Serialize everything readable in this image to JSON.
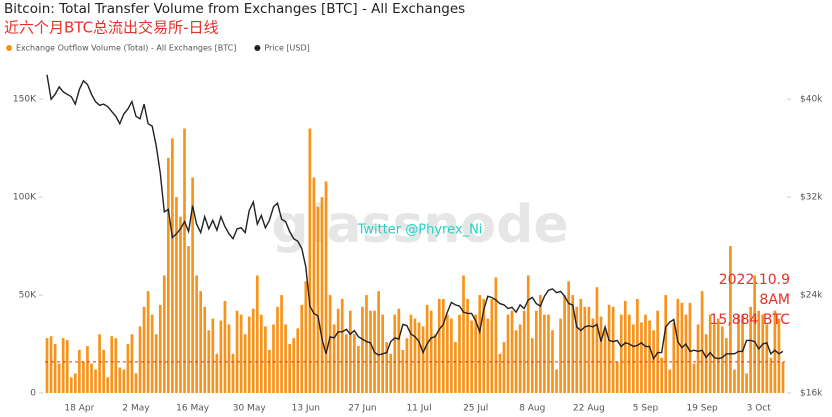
{
  "chart_data": {
    "type": "bar",
    "title": "Bitcoin: Total Transfer Volume from Exchanges [BTC] - All Exchanges",
    "subtitle": "近六个月BTC总流出交易所-日线",
    "watermark": "glassnode",
    "credit": "Twitter @Phyrex_Ni",
    "annotation": {
      "lines": [
        "2022.10.9",
        "8AM",
        "15,884 BTC"
      ],
      "value": 15884,
      "color": "#e8302a"
    },
    "categories": [
      null,
      null,
      null,
      null,
      null,
      null,
      null,
      null,
      "18 Apr",
      null,
      null,
      null,
      null,
      null,
      null,
      null,
      null,
      null,
      null,
      null,
      null,
      null,
      "2 May",
      null,
      null,
      null,
      null,
      null,
      null,
      null,
      null,
      null,
      null,
      null,
      null,
      null,
      "16 May",
      null,
      null,
      null,
      null,
      null,
      null,
      null,
      null,
      null,
      null,
      null,
      null,
      null,
      "30 May",
      null,
      null,
      null,
      null,
      null,
      null,
      null,
      null,
      null,
      null,
      null,
      null,
      null,
      "13 Jun",
      null,
      null,
      null,
      null,
      null,
      null,
      null,
      null,
      null,
      null,
      null,
      null,
      null,
      "27 Jun",
      null,
      null,
      null,
      null,
      null,
      null,
      null,
      null,
      null,
      null,
      null,
      null,
      null,
      "11 Jul",
      null,
      null,
      null,
      null,
      null,
      null,
      null,
      null,
      null,
      null,
      null,
      null,
      null,
      "25 Jul",
      null,
      null,
      null,
      null,
      null,
      null,
      null,
      null,
      null,
      null,
      null,
      null,
      null,
      "8 Aug",
      null,
      null,
      null,
      null,
      null,
      null,
      null,
      null,
      null,
      null,
      null,
      null,
      null,
      "22 Aug",
      null,
      null,
      null,
      null,
      null,
      null,
      null,
      null,
      null,
      null,
      null,
      null,
      null,
      "5 Sep",
      null,
      null,
      null,
      null,
      null,
      null,
      null,
      null,
      null,
      null,
      null,
      null,
      null,
      "19 Sep",
      null,
      null,
      null,
      null,
      null,
      null,
      null,
      null,
      null,
      null,
      null,
      null,
      null,
      "3 Oct",
      null,
      null,
      null,
      null,
      null,
      null
    ],
    "series": [
      {
        "name": "Exchange Outflow Volume (Total) - All Exchanges [BTC]",
        "color": "#f7931a",
        "values": [
          28000,
          29000,
          25000,
          15000,
          28000,
          27000,
          8000,
          10000,
          22000,
          16000,
          24000,
          15000,
          12000,
          30000,
          22000,
          8000,
          29000,
          28000,
          13000,
          12000,
          25000,
          30000,
          10000,
          34000,
          44000,
          52000,
          40000,
          30000,
          45000,
          60000,
          120000,
          130000,
          100000,
          90000,
          135000,
          75000,
          110000,
          60000,
          52000,
          44000,
          32000,
          38000,
          20000,
          37000,
          47000,
          35000,
          20000,
          42000,
          40000,
          30000,
          39000,
          43000,
          60000,
          40000,
          34000,
          22000,
          35000,
          44000,
          50000,
          35000,
          25000,
          28000,
          33000,
          45000,
          57000,
          135000,
          110000,
          95000,
          100000,
          108000,
          50000,
          35000,
          43000,
          48000,
          30000,
          42000,
          30000,
          24000,
          44000,
          50000,
          42000,
          42000,
          52000,
          40000,
          26000,
          20000,
          40000,
          43000,
          22000,
          28000,
          40000,
          38000,
          36000,
          34000,
          45000,
          42000,
          30000,
          48000,
          48000,
          40000,
          38000,
          26000,
          40000,
          60000,
          48000,
          37000,
          40000,
          50000,
          48000,
          38000,
          48000,
          59000,
          20000,
          26000,
          40000,
          42000,
          32000,
          35000,
          42000,
          60000,
          28000,
          42000,
          50000,
          40000,
          40000,
          32000,
          12000,
          38000,
          50000,
          57000,
          50000,
          44000,
          48000,
          44000,
          44000,
          38000,
          54000,
          39000,
          33000,
          45000,
          44000,
          16000,
          40000,
          47000,
          40000,
          35000,
          48000,
          36000,
          40000,
          37000,
          32000,
          42000,
          18000,
          50000,
          12000,
          36000,
          48000,
          46000,
          40000,
          46000,
          15000,
          35000,
          52000,
          30000,
          40000,
          35000,
          38000,
          34000,
          28000,
          75000,
          12000,
          40000,
          40000,
          10000,
          44000,
          60000,
          42000,
          40000,
          35000,
          18000,
          42000,
          38000,
          15884
        ]
      },
      {
        "name": "Price [USD]",
        "color": "#222222",
        "type": "line",
        "axis": "y2",
        "values": [
          42000,
          40000,
          40400,
          41000,
          40600,
          40400,
          40200,
          39600,
          40800,
          41500,
          41200,
          40400,
          39800,
          39500,
          39600,
          39400,
          39000,
          38600,
          38000,
          38800,
          39200,
          39800,
          38600,
          38400,
          39600,
          38000,
          37800,
          36200,
          34000,
          30800,
          31000,
          28700,
          29000,
          29400,
          30000,
          29200,
          31300,
          29800,
          29100,
          30400,
          29400,
          30100,
          29300,
          30400,
          29600,
          29000,
          28600,
          29400,
          29500,
          29100,
          30900,
          31600,
          29800,
          30500,
          29500,
          30100,
          31200,
          31500,
          30200,
          30000,
          29200,
          28600,
          28400,
          27800,
          26300,
          23100,
          22500,
          22300,
          20400,
          19200,
          20600,
          20500,
          21000,
          21000,
          21200,
          20800,
          21100,
          20600,
          20400,
          20200,
          20100,
          19300,
          19100,
          19200,
          19300,
          20200,
          20500,
          20400,
          21600,
          21500,
          20800,
          20600,
          20200,
          19300,
          20000,
          20500,
          20600,
          21200,
          21600,
          22600,
          23400,
          23200,
          23100,
          22600,
          22500,
          22500,
          21900,
          21000,
          22800,
          23900,
          23800,
          23600,
          23300,
          23200,
          22900,
          23000,
          22600,
          23200,
          22900,
          23600,
          23800,
          23300,
          23100,
          23900,
          24400,
          24500,
          24200,
          24300,
          23900,
          23300,
          23200,
          21400,
          21100,
          21400,
          21500,
          21400,
          21600,
          20200,
          21400,
          20300,
          20200,
          20300,
          19800,
          20100,
          20000,
          19800,
          19900,
          20100,
          19800,
          19800,
          18800,
          19300,
          19300,
          21400,
          21800,
          22000,
          20200,
          19700,
          20000,
          19400,
          19500,
          19400,
          19500,
          18900,
          19300,
          18900,
          18800,
          18900,
          19200,
          19200,
          19200,
          19400,
          19400,
          20300,
          20300,
          20200,
          19600,
          20000,
          20100,
          19200,
          19500,
          19200,
          19400
        ]
      }
    ],
    "ylim": [
      0,
      170000
    ],
    "yticks": [
      0,
      {
        "value": 50000,
        "label": "50K"
      },
      {
        "value": 100000,
        "label": "100K"
      },
      {
        "value": 150000,
        "label": "150K"
      }
    ],
    "y2lim": [
      16000,
      43200
    ],
    "y2ticks": [
      {
        "value": 16000,
        "label": "$16k"
      },
      {
        "value": 24000,
        "label": "$24k"
      },
      {
        "value": 32000,
        "label": "$32k"
      },
      {
        "value": 40000,
        "label": "$40k"
      }
    ]
  }
}
